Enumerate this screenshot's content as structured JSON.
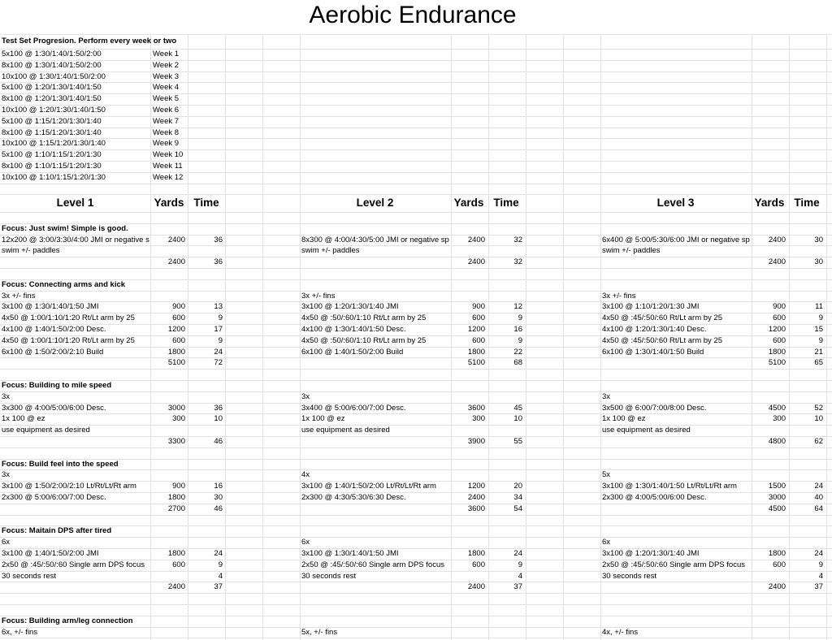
{
  "title": "Aerobic Endurance",
  "test_set": {
    "heading": "Test Set Progresion. Perform every week or two",
    "rows": [
      [
        "5x100 @ 1:30/1:40/1:50/2:00",
        "Week 1"
      ],
      [
        "8x100 @ 1:30/1:40/1:50/2:00",
        "Week 2"
      ],
      [
        "10x100 @  1:30/1:40/1:50/2:00",
        "Week 3"
      ],
      [
        "5x100 @ 1:20/1:30/1:40/1:50",
        "Week 4"
      ],
      [
        "8x100 @ 1:20/1:30/1:40/1:50",
        "Week 5"
      ],
      [
        "10x100 @ 1:20/1:30/1:40/1:50",
        "Week 6"
      ],
      [
        "5x100 @ 1:15/1:20/1:30/1:40",
        "Week 7"
      ],
      [
        "8x100 @ 1:15/1:20/1:30/1:40",
        "Week 8"
      ],
      [
        "10x100 @ 1:15/1:20/1:30/1:40",
        "Week 9"
      ],
      [
        "5x100 @ 1:10/1:15/1:20/1:30",
        "Week 10"
      ],
      [
        "8x100 @ 1:10/1:15/1:20/1:30",
        "Week 11"
      ],
      [
        "10x100 @ 1:10/1:15/1:20/1:30",
        "Week 12"
      ]
    ]
  },
  "level_headers": [
    [
      "Level 1",
      "Yards",
      "Time"
    ],
    [
      "Level 2",
      "Yards",
      "Time"
    ],
    [
      "Level 3",
      "Yards",
      "Time"
    ]
  ],
  "sections": [
    {
      "focus": "Focus: Just swim! Simple is good.",
      "rows": [
        [
          [
            "12x200 @ 3:00/3:30/4:00 JMI or negative s",
            2400,
            36
          ],
          [
            "8x300 @ 4:00/4:30/5:00 JMI or negative sp",
            2400,
            32
          ],
          [
            "6x400 @ 5:00/5:30/6:00 JMI or negative sp",
            2400,
            30
          ]
        ],
        [
          [
            "swim +/- paddles",
            null,
            null
          ],
          [
            "swim +/- paddles",
            null,
            null
          ],
          [
            "swim +/- paddles",
            null,
            null
          ]
        ],
        [
          [
            null,
            2400,
            36
          ],
          [
            null,
            2400,
            32
          ],
          [
            null,
            2400,
            30
          ]
        ]
      ]
    },
    {
      "focus": "Focus: Connecting arms and kick",
      "rows": [
        [
          [
            "3x +/- fins",
            null,
            null
          ],
          [
            "3x +/- fins",
            null,
            null
          ],
          [
            "3x +/- fins",
            null,
            null
          ]
        ],
        [
          [
            "3x100 @ 1:30/1:40/1:50 JMI",
            900,
            13
          ],
          [
            "3x100 @ 1:20/1:30/1:40 JMI",
            900,
            12
          ],
          [
            "3x100 @ 1:10/1:20/1:30 JMI",
            900,
            11
          ]
        ],
        [
          [
            "4x50 @ 1:00/1:10/1:20 Rt/Lt arm by 25",
            600,
            9
          ],
          [
            "4x50 @ :50/:60/1:10 Rt/Lt arm by 25",
            600,
            9
          ],
          [
            "4x50 @ :45/:50/:60 Rt/Lt arm by 25",
            600,
            9
          ]
        ],
        [
          [
            "4x100 @ 1:40/1:50/2:00 Desc.",
            1200,
            17
          ],
          [
            "4x100 @ 1:30/1:40/1:50 Desc.",
            1200,
            16
          ],
          [
            "4x100 @ 1:20/1:30/1:40 Desc.",
            1200,
            15
          ]
        ],
        [
          [
            "4x50 @ 1:00/1:10/1:20 Rt/Lt arm by 25",
            600,
            9
          ],
          [
            "4x50 @ :50/:60/1:10 Rt/Lt arm by 25",
            600,
            9
          ],
          [
            "4x50 @ :45/:50/:60 Rt/Lt arm by 25",
            600,
            9
          ]
        ],
        [
          [
            "6x100 @ 1:50/2:00/2:10 Build",
            1800,
            24
          ],
          [
            "6x100 @ 1:40/1:50/2:00 Build",
            1800,
            22
          ],
          [
            "6x100 @ 1:30/1:40/1:50 Build",
            1800,
            21
          ]
        ],
        [
          [
            null,
            5100,
            72
          ],
          [
            null,
            5100,
            68
          ],
          [
            null,
            5100,
            65
          ]
        ]
      ]
    },
    {
      "focus": "Focus: Building to mile speed",
      "rows": [
        [
          [
            "3x",
            null,
            null
          ],
          [
            "3x",
            null,
            null
          ],
          [
            "3x",
            null,
            null
          ]
        ],
        [
          [
            "3x300 @ 4:00/5:00/6:00 Desc.",
            3000,
            36
          ],
          [
            "3x400 @ 5:00/6:00/7:00  Desc.",
            3600,
            45
          ],
          [
            "3x500 @ 6:00/7:00/8:00 Desc.",
            4500,
            52
          ]
        ],
        [
          [
            "1x 100 @ ez",
            300,
            10
          ],
          [
            "1x 100 @ ez",
            300,
            10
          ],
          [
            "1x 100 @ ez",
            300,
            10
          ]
        ],
        [
          [
            "use equipment as desired",
            null,
            null
          ],
          [
            "use equipment as desired",
            null,
            null
          ],
          [
            "use equipment as desired",
            null,
            null
          ]
        ],
        [
          [
            null,
            3300,
            46
          ],
          [
            null,
            3900,
            55
          ],
          [
            null,
            4800,
            62
          ]
        ]
      ]
    },
    {
      "focus": "Focus: Build feel into the speed",
      "rows": [
        [
          [
            "3x",
            null,
            null
          ],
          [
            "4x",
            null,
            null
          ],
          [
            "5x",
            null,
            null
          ]
        ],
        [
          [
            "3x100 @ 1:50/2:00/2:10 Lt/Rt/Lt/Rt arm",
            900,
            16
          ],
          [
            "3x100 @ 1:40/1:50/2:00 Lt/Rt/Lt/Rt arm",
            1200,
            20
          ],
          [
            "3x100 @ 1:30/1:40/1:50 Lt/Rt/Lt/Rt arm",
            1500,
            24
          ]
        ],
        [
          [
            "2x300 @ 5:00/6:00/7:00 Desc.",
            1800,
            30
          ],
          [
            "2x300 @ 4:30/5:30/6:30 Desc.",
            2400,
            34
          ],
          [
            "2x300 @ 4:00/5:00/6:00 Desc.",
            3000,
            40
          ]
        ],
        [
          [
            null,
            2700,
            46
          ],
          [
            null,
            3600,
            54
          ],
          [
            null,
            4500,
            64
          ]
        ]
      ]
    },
    {
      "focus": "Focus: Maitain DPS after tired",
      "rows": [
        [
          [
            "6x",
            null,
            null
          ],
          [
            "6x",
            null,
            null
          ],
          [
            "6x",
            null,
            null
          ]
        ],
        [
          [
            "3x100 @ 1:40/1:50/2:00 JMI",
            1800,
            24
          ],
          [
            "3x100 @ 1:30/1:40/1:50 JMI",
            1800,
            24
          ],
          [
            "3x100 @ 1:20/1:30/1:40 JMI",
            1800,
            24
          ]
        ],
        [
          [
            "2x50 @ :45/:50/:60 Single arm DPS focus",
            600,
            9
          ],
          [
            "2x50 @ :45/:50/:60 Single arm DPS focus",
            600,
            9
          ],
          [
            "2x50 @ :45/:50/:60 Single arm DPS focus",
            600,
            9
          ]
        ],
        [
          [
            "30 seconds rest",
            null,
            4
          ],
          [
            "30 seconds rest",
            null,
            4
          ],
          [
            "30 seconds rest",
            null,
            4
          ]
        ],
        [
          [
            null,
            2400,
            37
          ],
          [
            null,
            2400,
            37
          ],
          [
            null,
            2400,
            37
          ]
        ]
      ]
    },
    {
      "focus": "Focus: Building arm/leg connection",
      "rows": [
        [
          [
            "6x, +/- fins",
            null,
            null
          ],
          [
            "5x, +/- fins",
            null,
            null
          ],
          [
            "4x, +/- fins",
            null,
            null
          ]
        ]
      ]
    }
  ]
}
